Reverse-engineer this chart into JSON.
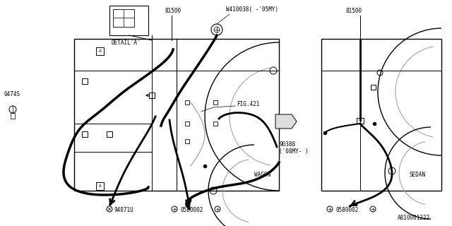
{
  "bg_color": "#ffffff",
  "line_color": "#000000",
  "gray_color": "#999999",
  "part_number": "A810001222",
  "labels": {
    "81500_left": "81500",
    "81500_right": "81500",
    "W410038": "W410038( -'05MY)",
    "DETAIL_A": "DETAIL'A'",
    "0474S": "0474S",
    "FIG421": "FIG.421",
    "90388": "90388\n('08MY- )",
    "WAGON": "WAGON",
    "SEDAN": "SEDAN",
    "94071U": "94071U",
    "0580002_left": "0580002",
    "0580002_right": "0580002"
  }
}
